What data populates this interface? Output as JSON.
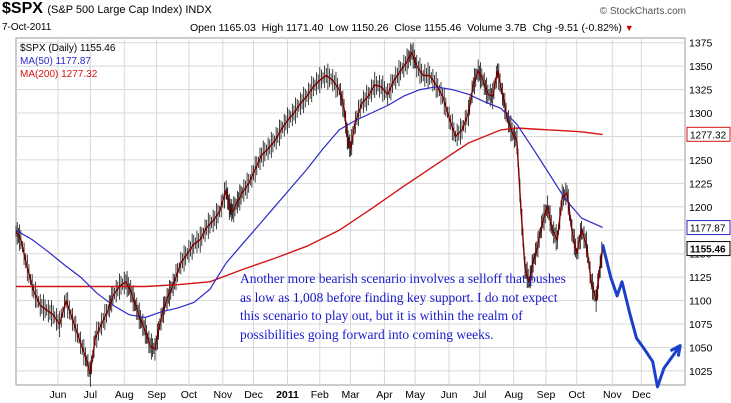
{
  "header": {
    "symbol": "$SPX",
    "subtitle": "(S&P 500 Large Cap Index) INDX",
    "credit": "© StockCharts.com",
    "date": "7-Oct-2011",
    "open": "Open 1165.03",
    "high": "High 1171.40",
    "low": "Low 1150.26",
    "close": "Close 1155.46",
    "volume": "Volume 3.7B",
    "chg": "Chg -9.51 (-0.82%)",
    "chg_marker": "▼"
  },
  "legend": {
    "price": "$SPX (Daily) 1155.46",
    "ma50": "MA(50) 1177.87",
    "ma200": "MA(200) 1277.32"
  },
  "annotation": "Another more bearish scenario involves a selloff that pushes as low as 1,008 before finding key support. I do not expect this scenario to play out, but it is within the realm of possibilities going forward into coming weeks.",
  "colors": {
    "price": "#800000",
    "price_hilo": "#111111",
    "ma50": "#2b2bc8",
    "ma200": "#d41414",
    "projection": "#1a3fc8",
    "grid": "#d8d8d8",
    "annotation": "#1a1acc"
  },
  "chart_data": {
    "type": "line",
    "ylim": [
      1010,
      1380
    ],
    "y_ticks": [
      1025,
      1050,
      1075,
      1100,
      1125,
      1150,
      1175,
      1200,
      1225,
      1250,
      1275,
      1300,
      1325,
      1350,
      1375
    ],
    "x_ticks": [
      "Jun",
      "Jul",
      "Aug",
      "Sep",
      "Oct",
      "Nov",
      "Dec",
      "2011",
      "Feb",
      "Mar",
      "Apr",
      "May",
      "Jun",
      "Jul",
      "Aug",
      "Sep",
      "Oct",
      "Nov",
      "Dec"
    ],
    "x_tick_pos": [
      1.3,
      2.3,
      3.35,
      4.35,
      5.35,
      6.4,
      7.35,
      8.4,
      9.4,
      10.35,
      11.4,
      12.35,
      13.4,
      14.35,
      15.4,
      16.4,
      17.35,
      18.45,
      19.35
    ],
    "price_labels": [
      {
        "text": "1277.32",
        "value": 1277.32,
        "series": "ma200"
      },
      {
        "text": "1177.87",
        "value": 1177.87,
        "series": "ma50"
      },
      {
        "text": "1155.46",
        "value": 1155.46,
        "series": "price"
      }
    ],
    "series": [
      {
        "name": "$SPX (Daily)",
        "points": [
          [
            0.0,
            1174
          ],
          [
            0.15,
            1165
          ],
          [
            0.35,
            1135
          ],
          [
            0.55,
            1110
          ],
          [
            0.75,
            1095
          ],
          [
            0.95,
            1090
          ],
          [
            1.15,
            1085
          ],
          [
            1.35,
            1075
          ],
          [
            1.55,
            1100
          ],
          [
            1.75,
            1080
          ],
          [
            1.95,
            1060
          ],
          [
            2.15,
            1040
          ],
          [
            2.3,
            1022
          ],
          [
            2.45,
            1060
          ],
          [
            2.65,
            1075
          ],
          [
            2.85,
            1090
          ],
          [
            3.0,
            1105
          ],
          [
            3.2,
            1115
          ],
          [
            3.4,
            1120
          ],
          [
            3.55,
            1110
          ],
          [
            3.7,
            1095
          ],
          [
            3.85,
            1080
          ],
          [
            4.0,
            1068
          ],
          [
            4.15,
            1052
          ],
          [
            4.3,
            1048
          ],
          [
            4.45,
            1075
          ],
          [
            4.6,
            1095
          ],
          [
            4.75,
            1108
          ],
          [
            4.9,
            1120
          ],
          [
            5.1,
            1140
          ],
          [
            5.3,
            1150
          ],
          [
            5.5,
            1160
          ],
          [
            5.7,
            1165
          ],
          [
            5.9,
            1178
          ],
          [
            6.1,
            1185
          ],
          [
            6.3,
            1195
          ],
          [
            6.5,
            1218
          ],
          [
            6.6,
            1200
          ],
          [
            6.7,
            1195
          ],
          [
            6.85,
            1205
          ],
          [
            7.0,
            1215
          ],
          [
            7.2,
            1225
          ],
          [
            7.4,
            1240
          ],
          [
            7.6,
            1255
          ],
          [
            7.8,
            1262
          ],
          [
            8.0,
            1270
          ],
          [
            8.2,
            1282
          ],
          [
            8.4,
            1292
          ],
          [
            8.6,
            1300
          ],
          [
            8.8,
            1310
          ],
          [
            9.0,
            1318
          ],
          [
            9.2,
            1328
          ],
          [
            9.4,
            1335
          ],
          [
            9.6,
            1340
          ],
          [
            9.8,
            1335
          ],
          [
            10.0,
            1325
          ],
          [
            10.15,
            1305
          ],
          [
            10.25,
            1275
          ],
          [
            10.35,
            1262
          ],
          [
            10.5,
            1290
          ],
          [
            10.7,
            1310
          ],
          [
            10.9,
            1318
          ],
          [
            11.1,
            1330
          ],
          [
            11.3,
            1328
          ],
          [
            11.5,
            1320
          ],
          [
            11.7,
            1335
          ],
          [
            11.9,
            1345
          ],
          [
            12.1,
            1355
          ],
          [
            12.25,
            1365
          ],
          [
            12.4,
            1350
          ],
          [
            12.6,
            1340
          ],
          [
            12.8,
            1340
          ],
          [
            13.0,
            1330
          ],
          [
            13.2,
            1318
          ],
          [
            13.4,
            1295
          ],
          [
            13.6,
            1275
          ],
          [
            13.8,
            1282
          ],
          [
            14.0,
            1300
          ],
          [
            14.15,
            1330
          ],
          [
            14.3,
            1345
          ],
          [
            14.45,
            1335
          ],
          [
            14.6,
            1320
          ],
          [
            14.75,
            1318
          ],
          [
            14.9,
            1345
          ],
          [
            15.05,
            1320
          ],
          [
            15.2,
            1295
          ],
          [
            15.35,
            1280
          ],
          [
            15.5,
            1270
          ],
          [
            15.62,
            1200
          ],
          [
            15.75,
            1135
          ],
          [
            15.88,
            1120
          ],
          [
            16.0,
            1140
          ],
          [
            16.15,
            1160
          ],
          [
            16.3,
            1185
          ],
          [
            16.45,
            1200
          ],
          [
            16.6,
            1175
          ],
          [
            16.75,
            1165
          ],
          [
            16.9,
            1210
          ],
          [
            17.05,
            1215
          ],
          [
            17.2,
            1175
          ],
          [
            17.35,
            1150
          ],
          [
            17.5,
            1175
          ],
          [
            17.65,
            1160
          ],
          [
            17.8,
            1120
          ],
          [
            17.95,
            1100
          ],
          [
            18.05,
            1130
          ],
          [
            18.15,
            1155
          ]
        ]
      },
      {
        "name": "MA(50)",
        "points": [
          [
            0.0,
            1175
          ],
          [
            0.5,
            1165
          ],
          [
            1.0,
            1152
          ],
          [
            1.5,
            1138
          ],
          [
            2.0,
            1125
          ],
          [
            2.5,
            1108
          ],
          [
            3.0,
            1095
          ],
          [
            3.5,
            1085
          ],
          [
            4.0,
            1082
          ],
          [
            4.5,
            1088
          ],
          [
            5.0,
            1092
          ],
          [
            5.5,
            1098
          ],
          [
            6.0,
            1112
          ],
          [
            6.5,
            1140
          ],
          [
            7.0,
            1160
          ],
          [
            7.5,
            1180
          ],
          [
            8.0,
            1200
          ],
          [
            8.5,
            1220
          ],
          [
            9.0,
            1240
          ],
          [
            9.5,
            1262
          ],
          [
            10.0,
            1282
          ],
          [
            10.5,
            1292
          ],
          [
            11.0,
            1300
          ],
          [
            11.5,
            1308
          ],
          [
            12.0,
            1318
          ],
          [
            12.5,
            1325
          ],
          [
            13.0,
            1328
          ],
          [
            13.5,
            1325
          ],
          [
            14.0,
            1320
          ],
          [
            14.5,
            1312
          ],
          [
            15.0,
            1305
          ],
          [
            15.5,
            1288
          ],
          [
            16.0,
            1262
          ],
          [
            16.5,
            1235
          ],
          [
            17.0,
            1208
          ],
          [
            17.5,
            1188
          ],
          [
            18.15,
            1178
          ]
        ]
      },
      {
        "name": "MA(200)",
        "points": [
          [
            0.0,
            1115
          ],
          [
            1.0,
            1115
          ],
          [
            2.0,
            1115
          ],
          [
            3.0,
            1115
          ],
          [
            4.0,
            1115
          ],
          [
            5.0,
            1117
          ],
          [
            6.0,
            1120
          ],
          [
            7.0,
            1133
          ],
          [
            8.0,
            1145
          ],
          [
            9.0,
            1158
          ],
          [
            10.0,
            1175
          ],
          [
            11.0,
            1198
          ],
          [
            12.0,
            1222
          ],
          [
            13.0,
            1245
          ],
          [
            14.0,
            1268
          ],
          [
            15.0,
            1282
          ],
          [
            15.5,
            1284
          ],
          [
            16.0,
            1283
          ],
          [
            16.5,
            1282
          ],
          [
            17.0,
            1281
          ],
          [
            17.5,
            1280
          ],
          [
            18.15,
            1277
          ]
        ]
      },
      {
        "name": "projection",
        "points": [
          [
            18.15,
            1160
          ],
          [
            18.4,
            1125
          ],
          [
            18.6,
            1105
          ],
          [
            18.75,
            1120
          ],
          [
            19.0,
            1085
          ],
          [
            19.2,
            1060
          ],
          [
            19.45,
            1048
          ],
          [
            19.7,
            1035
          ],
          [
            19.85,
            1008
          ],
          [
            20.05,
            1028
          ],
          [
            20.3,
            1040
          ],
          [
            20.55,
            1052
          ]
        ]
      }
    ]
  }
}
